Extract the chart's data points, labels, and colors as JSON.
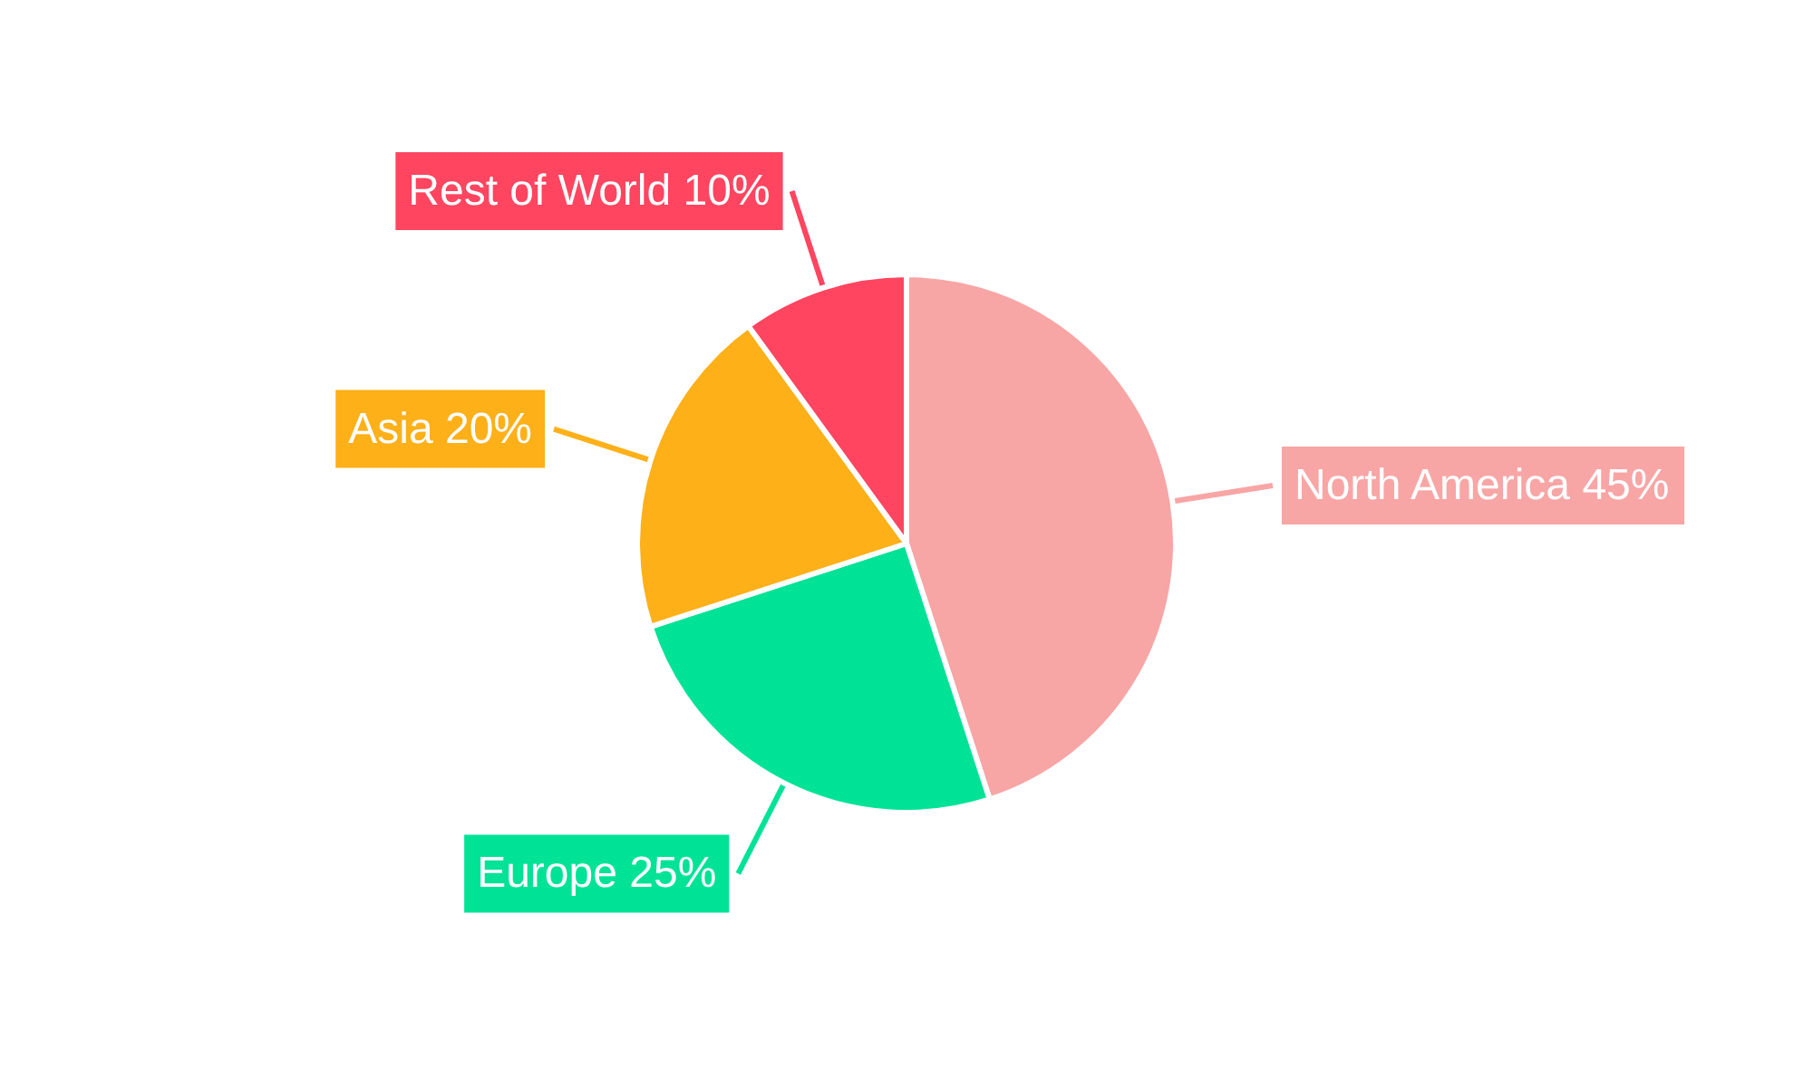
{
  "chart_data": {
    "type": "pie",
    "categories": [
      "North America",
      "Europe",
      "Asia",
      "Rest of World"
    ],
    "values": [
      45,
      25,
      20,
      10
    ],
    "colors": [
      "#f8a5a5",
      "#00e396",
      "#feb019",
      "#ff4560"
    ],
    "value_labels": [
      "45%",
      "25%",
      "20%",
      "10%"
    ],
    "legend": false
  }
}
